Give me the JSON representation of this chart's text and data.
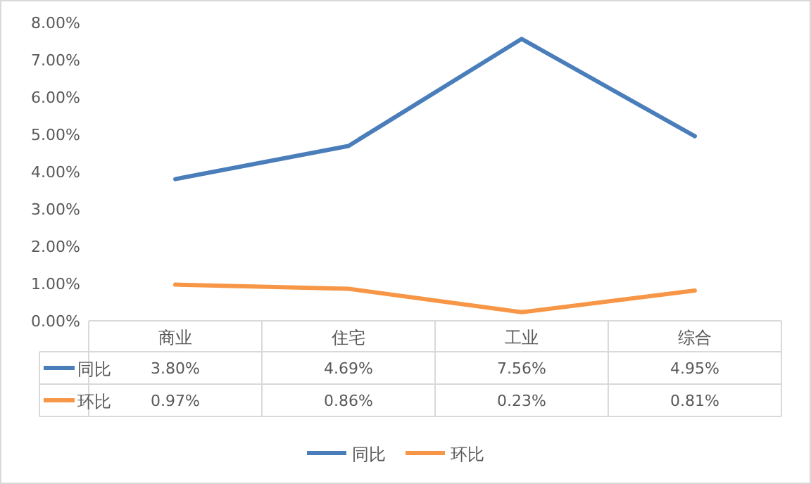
{
  "chart_data": {
    "type": "line",
    "categories": [
      "商业",
      "住宅",
      "工业",
      "综合"
    ],
    "series": [
      {
        "name": "同比",
        "color": "#4a7ebb",
        "values": [
          3.8,
          4.69,
          7.56,
          4.95
        ],
        "value_labels": [
          "3.80%",
          "4.69%",
          "7.56%",
          "4.95%"
        ]
      },
      {
        "name": "环比",
        "color": "#f79646",
        "values": [
          0.97,
          0.86,
          0.23,
          0.81
        ],
        "value_labels": [
          "0.97%",
          "0.86%",
          "0.23%",
          "0.81%"
        ]
      }
    ],
    "ylim": [
      0,
      8
    ],
    "yticks": [
      {
        "value": 0,
        "label": "0.00%"
      },
      {
        "value": 1,
        "label": "1.00%"
      },
      {
        "value": 2,
        "label": "2.00%"
      },
      {
        "value": 3,
        "label": "3.00%"
      },
      {
        "value": 4,
        "label": "4.00%"
      },
      {
        "value": 5,
        "label": "5.00%"
      },
      {
        "value": 6,
        "label": "6.00%"
      },
      {
        "value": 7,
        "label": "7.00%"
      },
      {
        "value": 8,
        "label": "8.00%"
      }
    ],
    "legend": "bottom",
    "marker": "none",
    "line_style": "solid",
    "grid": false
  }
}
